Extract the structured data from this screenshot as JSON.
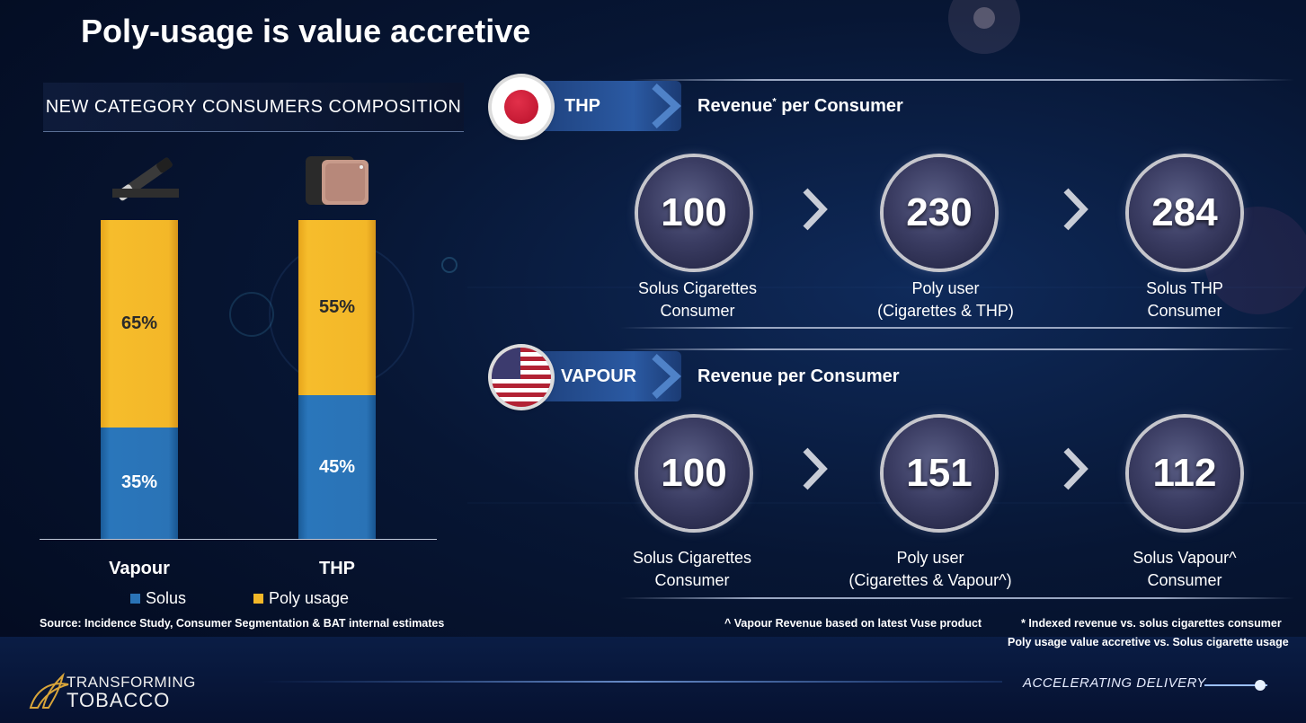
{
  "title": "Poly-usage is value accretive",
  "left_panel": {
    "heading": "NEW CATEGORY CONSUMERS COMPOSITION"
  },
  "chart_data": {
    "type": "bar",
    "stacked": true,
    "categories": [
      "Vapour",
      "THP"
    ],
    "series": [
      {
        "name": "Solus",
        "values": [
          35,
          45
        ],
        "labels": [
          "35%",
          "45%"
        ],
        "color": "#2a73b6"
      },
      {
        "name": "Poly usage",
        "values": [
          65,
          55
        ],
        "labels": [
          "65%",
          "55%"
        ],
        "color": "#f3b728"
      }
    ],
    "ylim": [
      0,
      100
    ],
    "legend": "bottom"
  },
  "source": "Source: Incidence Study, Consumer Segmentation & BAT internal estimates",
  "thp": {
    "pill": "THP",
    "revenue_title": "Revenue",
    "revenue_sup": "*",
    "revenue_rest": " per Consumer",
    "items": [
      {
        "value": "100",
        "line1": "Solus Cigarettes",
        "line2": "Consumer"
      },
      {
        "value": "230",
        "line1": "Poly user",
        "line2": "(Cigarettes & THP)"
      },
      {
        "value": "284",
        "line1": "Solus THP",
        "line2": "Consumer"
      }
    ]
  },
  "vapour": {
    "pill": "VAPOUR",
    "revenue_title": "Revenue per Consumer",
    "items": [
      {
        "value": "100",
        "line1": "Solus Cigarettes",
        "line2": "Consumer"
      },
      {
        "value": "151",
        "line1": "Poly user",
        "line2": "(Cigarettes & Vapour^)"
      },
      {
        "value": "112",
        "line1": "Solus Vapour^",
        "line2": "Consumer"
      }
    ]
  },
  "notes": {
    "vapour_note": "^ Vapour Revenue based on latest Vuse product",
    "indexed_note": "* Indexed revenue vs. solus cigarettes consumer",
    "accretive_note": "Poly usage value accretive vs. Solus cigarette usage"
  },
  "footer": {
    "brand_line1": "TRANSFORMING",
    "brand_line2": "TOBACCO",
    "tagline": "ACCELERATING DELIVERY"
  }
}
